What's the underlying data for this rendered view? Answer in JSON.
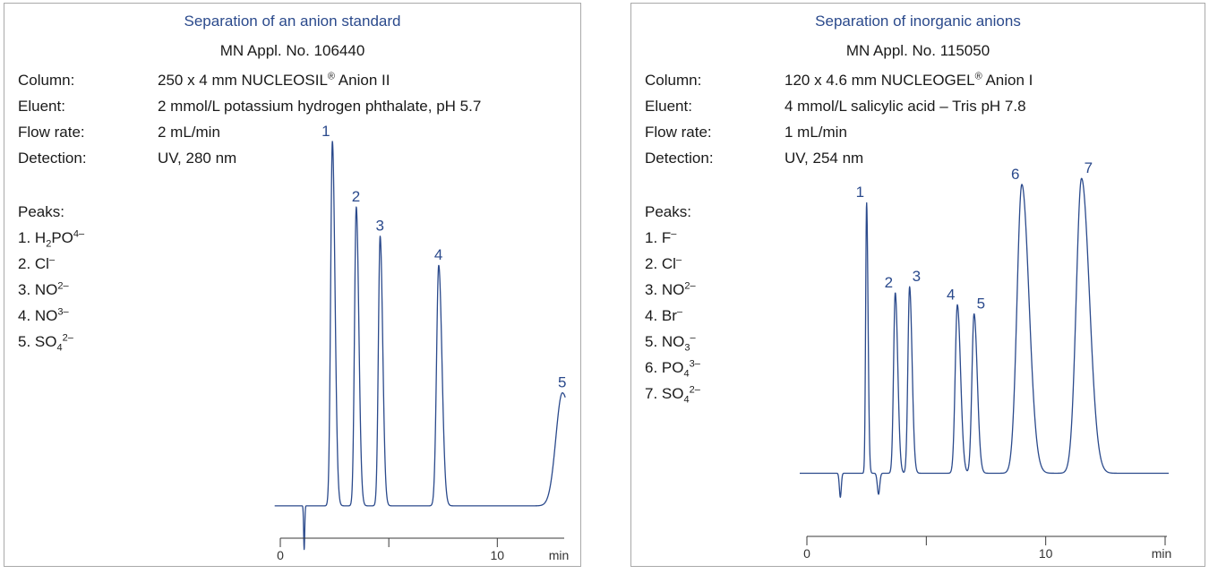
{
  "chart_data": [
    {
      "type": "line",
      "title": "Separation of an anion standard",
      "subtitle": "MN Appl. No. 106440",
      "conditions": [
        {
          "label": "Column:",
          "value_pre": "250 x 4 mm NUCLEOSIL",
          "value_sup": "®",
          "value_post": " Anion II"
        },
        {
          "label": "Eluent:",
          "value_pre": "2 mmol/L potassium hydrogen phthalate, pH 5.7",
          "value_sup": "",
          "value_post": ""
        },
        {
          "label": "Flow rate:",
          "value_pre": "2 mL/min",
          "value_sup": "",
          "value_post": ""
        },
        {
          "label": "Detection:",
          "value_pre": "UV, 280 nm",
          "value_sup": "",
          "value_post": ""
        }
      ],
      "peaks_heading": "Peaks:",
      "peaks": [
        {
          "num": "1. ",
          "parts": [
            {
              "t": "H"
            },
            {
              "t": "2",
              "s": "sub"
            },
            {
              "t": "PO"
            },
            {
              "t": "4–",
              "s": "sup"
            }
          ]
        },
        {
          "num": "2. ",
          "parts": [
            {
              "t": "Cl"
            },
            {
              "t": "–",
              "s": "sup"
            }
          ]
        },
        {
          "num": "3. ",
          "parts": [
            {
              "t": "NO"
            },
            {
              "t": "2–",
              "s": "sup"
            }
          ]
        },
        {
          "num": "4. ",
          "parts": [
            {
              "t": "NO"
            },
            {
              "t": "3–",
              "s": "sup"
            }
          ]
        },
        {
          "num": "5. ",
          "parts": [
            {
              "t": "SO"
            },
            {
              "t": "4",
              "s": "sub"
            },
            {
              "t": "2–",
              "s": "sup"
            }
          ]
        }
      ],
      "xlabel": "min",
      "xlim": [
        0,
        13
      ],
      "ylim": [
        0,
        100
      ],
      "ticks": [
        0,
        5,
        10
      ],
      "tick_labels": [
        "0",
        "",
        "10"
      ],
      "baseline": 2,
      "series_peaks": [
        {
          "label": "1",
          "x": 2.4,
          "y": 100,
          "w": 0.08
        },
        {
          "label": "2",
          "x": 3.5,
          "y": 82,
          "w": 0.08
        },
        {
          "label": "3",
          "x": 4.6,
          "y": 74,
          "w": 0.08
        },
        {
          "label": "4",
          "x": 7.3,
          "y": 66,
          "w": 0.1
        },
        {
          "label": "5",
          "x": 13.0,
          "y": 31,
          "w": 0.3
        }
      ],
      "dips": [
        {
          "x": 1.1,
          "y": -12,
          "w": 0.025
        }
      ]
    },
    {
      "type": "line",
      "title": "Separation of inorganic anions",
      "subtitle": "MN Appl. No. 115050",
      "conditions": [
        {
          "label": "Column:",
          "value_pre": "120 x 4.6 mm NUCLEOGEL",
          "value_sup": "®",
          "value_post": " Anion I"
        },
        {
          "label": "Eluent:",
          "value_pre": "4 mmol/L salicylic acid – Tris pH 7.8",
          "value_sup": "",
          "value_post": ""
        },
        {
          "label": "Flow rate:",
          "value_pre": "1 mL/min",
          "value_sup": "",
          "value_post": ""
        },
        {
          "label": "Detection:",
          "value_pre": "UV, 254 nm",
          "value_sup": "",
          "value_post": ""
        }
      ],
      "peaks_heading": "Peaks:",
      "peaks": [
        {
          "num": "1. ",
          "parts": [
            {
              "t": "F"
            },
            {
              "t": "–",
              "s": "sup"
            }
          ]
        },
        {
          "num": "2. ",
          "parts": [
            {
              "t": "Cl"
            },
            {
              "t": "–",
              "s": "sup"
            }
          ]
        },
        {
          "num": "3. ",
          "parts": [
            {
              "t": "NO"
            },
            {
              "t": "2–",
              "s": "sup"
            }
          ]
        },
        {
          "num": "4. ",
          "parts": [
            {
              "t": "Br"
            },
            {
              "t": "–",
              "s": "sup"
            }
          ]
        },
        {
          "num": "5. ",
          "parts": [
            {
              "t": "NO"
            },
            {
              "t": "3",
              "s": "sub"
            },
            {
              "t": "–",
              "s": "sup"
            }
          ]
        },
        {
          "num": "6. ",
          "parts": [
            {
              "t": "PO"
            },
            {
              "t": "4",
              "s": "sub"
            },
            {
              "t": "3–",
              "s": "sup"
            }
          ]
        },
        {
          "num": "7. ",
          "parts": [
            {
              "t": "SO"
            },
            {
              "t": "4",
              "s": "sub"
            },
            {
              "t": "2–",
              "s": "sup"
            }
          ]
        }
      ],
      "xlabel": "min",
      "xlim": [
        0,
        15
      ],
      "ylim": [
        0,
        100
      ],
      "ticks": [
        0,
        5,
        10,
        15
      ],
      "tick_labels": [
        "0",
        "",
        "10",
        ""
      ],
      "baseline": 7,
      "series_peaks": [
        {
          "label": "1",
          "x": 2.5,
          "y": 90,
          "w": 0.04
        },
        {
          "label": "2",
          "x": 3.7,
          "y": 60,
          "w": 0.07
        },
        {
          "label": "3",
          "x": 4.3,
          "y": 62,
          "w": 0.07
        },
        {
          "label": "4",
          "x": 6.3,
          "y": 56,
          "w": 0.09
        },
        {
          "label": "5",
          "x": 7.0,
          "y": 53,
          "w": 0.09
        },
        {
          "label": "6",
          "x": 9.0,
          "y": 96,
          "w": 0.2
        },
        {
          "label": "7",
          "x": 11.5,
          "y": 98,
          "w": 0.22
        }
      ],
      "dips": [
        {
          "x": 1.4,
          "y": -8,
          "w": 0.04
        },
        {
          "x": 3.0,
          "y": -7,
          "w": 0.05
        }
      ]
    }
  ]
}
